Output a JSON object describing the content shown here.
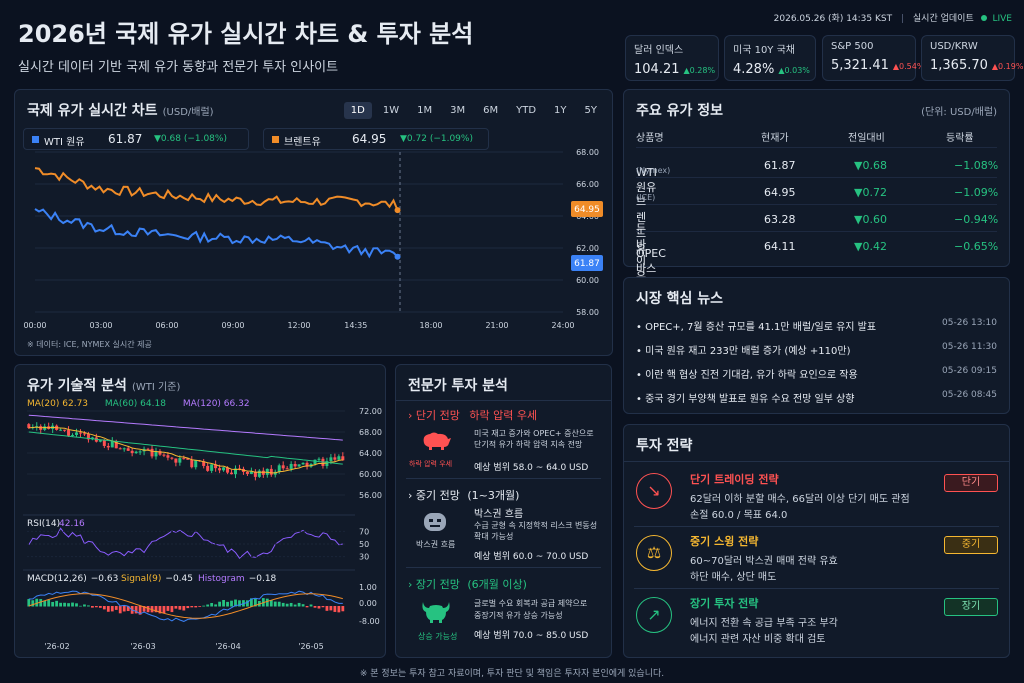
{
  "header": {
    "title": "2026년 국제 유가 실시간 차트 & 투자 분석",
    "subtitle": "실시간 데이터 기반 국제 유가 동향과 전문가 투자 인사이트",
    "datetime": "2026.05.26 (화) 14:35 KST",
    "update_label": "실시간 업데이트",
    "live": "LIVE"
  },
  "tickers": [
    {
      "label": "달러 인덱스",
      "value": "104.21",
      "change": "▲0.28%",
      "color": "#26c281"
    },
    {
      "label": "미국 10Y 국채",
      "value": "4.28%",
      "change": "▲0.03%",
      "color": "#26c281"
    },
    {
      "label": "S&P 500",
      "value": "5,321.41",
      "change": "▲0.54%",
      "color": "#ff5252"
    },
    {
      "label": "USD/KRW",
      "value": "1,365.70",
      "change": "▲0.19%",
      "color": "#ff5252"
    }
  ],
  "main_chart": {
    "title": "국제 유가 실시간 차트",
    "unit": "(USD/배럴)",
    "timeframes": [
      "1D",
      "1W",
      "1M",
      "3M",
      "6M",
      "YTD",
      "1Y",
      "5Y"
    ],
    "active": "1D",
    "wti": {
      "name": "WTI 원유",
      "price": "61.87",
      "change": "▼0.68 (−1.08%)",
      "color": "#3b82f6"
    },
    "brent": {
      "name": "브렌트유",
      "price": "64.95",
      "change": "▼0.72 (−1.09%)",
      "color": "#f08c28"
    },
    "yticks": [
      "68.00",
      "66.00",
      "64.00",
      "62.00",
      "60.00",
      "58.00"
    ],
    "xticks": [
      "00:00",
      "03:00",
      "06:00",
      "09:00",
      "12:00",
      "14:35",
      "18:00",
      "21:00",
      "24:00"
    ],
    "source": "※ 데이터: ICE, NYMEX 실시간 제공",
    "brent_label": "64.95",
    "wti_label": "61.87"
  },
  "chart_data": {
    "type": "line",
    "x": [
      "00:00",
      "03:00",
      "06:00",
      "09:00",
      "12:00",
      "14:35"
    ],
    "series": [
      {
        "name": "WTI 원유",
        "values": [
          64.3,
          63.2,
          62.8,
          62.6,
          62.5,
          61.87
        ]
      },
      {
        "name": "브렌트유",
        "values": [
          67.0,
          65.7,
          65.3,
          65.0,
          64.9,
          64.95
        ]
      }
    ],
    "ylim": [
      58,
      68
    ]
  },
  "tech": {
    "title": "유가 기술적 분석",
    "subtitle": "(WTI 기준)",
    "ma20": "MA(20) 62.73",
    "ma60": "MA(60) 64.18",
    "ma120": "MA(120) 66.32",
    "yticks": [
      "72.00",
      "68.00",
      "64.00",
      "60.00",
      "56.00"
    ],
    "rsi_label": "RSI(14)",
    "rsi_val": "42.16",
    "rsi_ticks": [
      "70",
      "50",
      "30"
    ],
    "macd_label": "MACD(12,26)",
    "macd_val": "−0.63",
    "signal_label": "Signal(9)",
    "signal_val": "−0.45",
    "hist_label": "Histogram",
    "hist_val": "−0.18",
    "macd_ticks": [
      "1.00",
      "0.00",
      "-8.00"
    ],
    "months": [
      "'26-02",
      "'26-03",
      "'26-04",
      "'26-05"
    ]
  },
  "expert": {
    "title": "전문가 투자 분석",
    "short": {
      "head": "단기 전망",
      "tag": "하락 압력 우세",
      "desc1": "미국 재고 증가와 OPEC+ 증산으로",
      "desc2": "단기적 유가 하락 압력 지속 전망",
      "range": "예상 범위 58.0 ~ 64.0 USD",
      "icon_label": "하락 압력 우세"
    },
    "mid": {
      "head": "중기 전망",
      "period": "(1~3개월)",
      "tag": "박스권 흐름",
      "desc1": "수급 균형 속 지정학적 리스크 변동성",
      "desc2": "확대 가능성",
      "range": "예상 범위 60.0 ~ 70.0 USD",
      "icon_label": "박스권 흐름"
    },
    "long": {
      "head": "장기 전망",
      "period": "(6개월 이상)",
      "desc1": "글로벌 수요 회복과 공급 제약으로",
      "desc2": "중장기적 유가 상승 가능성",
      "range": "예상 범위 70.0 ~ 85.0 USD",
      "icon_label": "상승 가능성"
    }
  },
  "info": {
    "title": "주요 유가 정보",
    "unit": "(단위: USD/배럴)",
    "headers": [
      "상품명",
      "현재가",
      "전일대비",
      "등락률"
    ],
    "rows": [
      {
        "name": "WTI 원유",
        "sub": "(Nymex)",
        "price": "61.87",
        "diff": "▼0.68",
        "rate": "−1.08%"
      },
      {
        "name": "브렌트유",
        "sub": "(ICE)",
        "price": "64.95",
        "diff": "▼0.72",
        "rate": "−1.09%"
      },
      {
        "name": "두바이유",
        "sub": "",
        "price": "63.28",
        "diff": "▼0.60",
        "rate": "−0.94%"
      },
      {
        "name": "OPEC 바스켓",
        "sub": "",
        "price": "64.11",
        "diff": "▼0.42",
        "rate": "−0.65%"
      }
    ]
  },
  "news": {
    "title": "시장 핵심 뉴스",
    "items": [
      {
        "text": "OPEC+, 7월 증산 규모를 41.1만 배럴/일로 유지 발표",
        "date": "05-26 13:10"
      },
      {
        "text": "미국 원유 재고 233만 배럴 증가 (예상 +110만)",
        "date": "05-26 11:30"
      },
      {
        "text": "이란 핵 협상 진전 기대감, 유가 하락 요인으로 작용",
        "date": "05-26 09:15"
      },
      {
        "text": "중국 경기 부양책 발표로 원유 수요 전망 일부 상향",
        "date": "05-26 08:45"
      }
    ]
  },
  "strategy": {
    "title": "투자 전략",
    "items": [
      {
        "title": "단기 트레이딩 전략",
        "l1": "62달러 이하 분할 매수, 66달러 이상 단기 매도 관점",
        "l2": "손절 60.0 / 목표 64.0",
        "badge": "단기",
        "color": "#ff5252"
      },
      {
        "title": "중기 스윙 전략",
        "l1": "60~70달러 박스권 매매 전략 유효",
        "l2": "하단 매수, 상단 매도",
        "badge": "중기",
        "color": "#f5b731"
      },
      {
        "title": "장기 투자 전략",
        "l1": "에너지 전환 속 공급 부족 구조 부각",
        "l2": "에너지 관련 자산 비중 확대 검토",
        "badge": "장기",
        "color": "#26c281"
      }
    ]
  },
  "footer": "※ 본 정보는 투자 참고 자료이며, 투자 판단 및 책임은 투자자 본인에게 있습니다."
}
